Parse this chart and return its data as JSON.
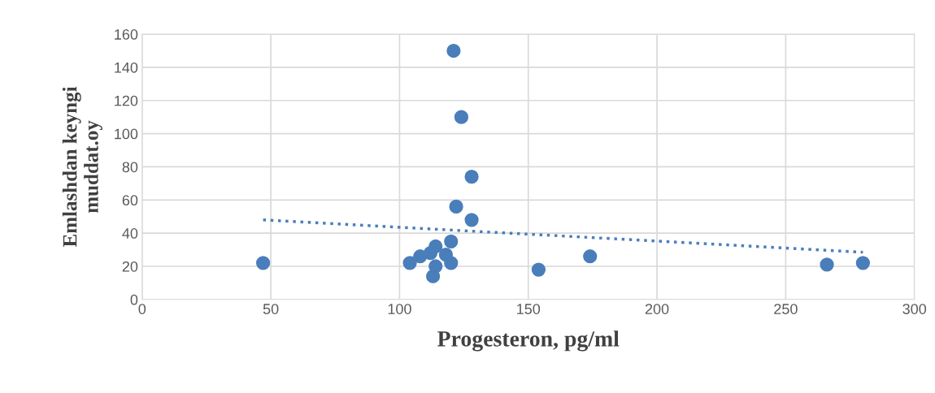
{
  "chart_data": {
    "type": "scatter",
    "xlabel": "Progesteron, pg/ml",
    "ylabel": "Emlashdan keyngi\nmuddat.oy",
    "xlim": [
      0,
      300
    ],
    "xticks": [
      0,
      50,
      100,
      150,
      200,
      250,
      300
    ],
    "ylim": [
      0,
      160
    ],
    "yticks": [
      0,
      20,
      40,
      60,
      80,
      100,
      120,
      140,
      160
    ],
    "grid": true,
    "marker": "circle",
    "legend": false,
    "series": [
      {
        "color": "#4a7ebb",
        "x": [
          47,
          121,
          124,
          128,
          122,
          128,
          120,
          114,
          108,
          112,
          104,
          118,
          120,
          114,
          113,
          154,
          174,
          266,
          280
        ],
        "values": [
          22,
          150,
          110,
          74,
          56,
          48,
          35,
          32,
          26,
          28,
          22,
          27,
          22,
          20,
          14,
          18,
          26,
          21,
          22
        ]
      },
      {
        "type": "line",
        "color": "#4a7ebb",
        "line_style": "dotted",
        "marker": "none",
        "x": [
          47,
          280
        ],
        "values": [
          48,
          28.5
        ]
      }
    ]
  }
}
